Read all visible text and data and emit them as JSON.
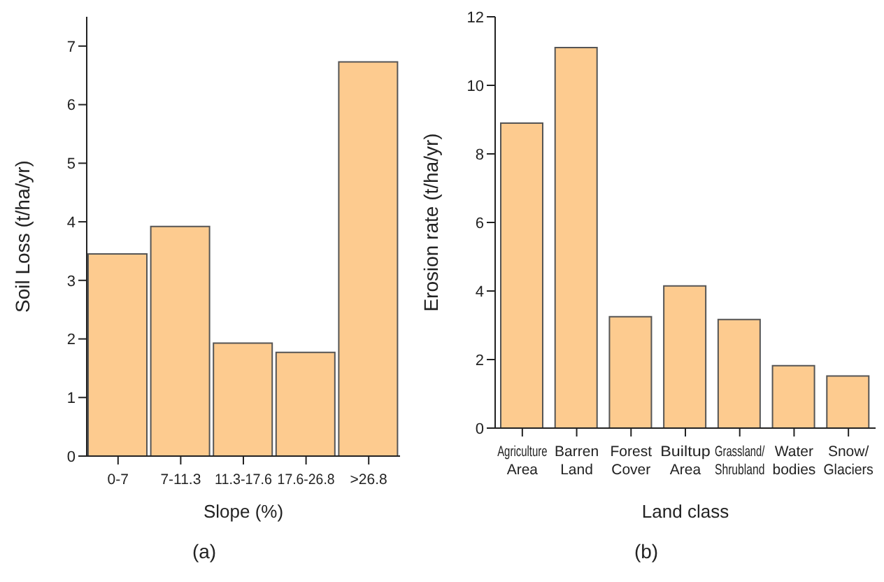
{
  "chart_data": [
    {
      "type": "bar",
      "xlabel": "Slope (%)",
      "ylabel": "Soil Loss (t/ha/yr)",
      "categories": [
        "0-7",
        "7-11.3",
        "11.3-17.6",
        "17.6-26.8",
        ">26.8"
      ],
      "values": [
        3.45,
        3.92,
        1.93,
        1.77,
        6.73
      ],
      "color": "#fdcb8f",
      "ylim": [
        0,
        7.5
      ],
      "yticks": [
        0,
        1,
        2,
        3,
        4,
        5,
        6,
        7
      ],
      "grid": false,
      "legend": false,
      "annotations": [
        "(a)"
      ]
    },
    {
      "type": "bar",
      "xlabel": "Land class",
      "ylabel": "Erosion rate (t/ha/yr)",
      "categories": [
        "Agriculture Area",
        "Barren Land",
        "Forest Cover",
        "Builtup Area",
        "Grassland/ Shrubland",
        "Water bodies",
        "Snow/ Glaciers"
      ],
      "values": [
        8.9,
        11.1,
        3.25,
        4.15,
        3.17,
        1.82,
        1.52
      ],
      "color": "#fdcb8f",
      "ylim": [
        0,
        12
      ],
      "yticks": [
        0,
        2,
        4,
        6,
        8,
        10,
        12
      ],
      "grid": false,
      "legend": false,
      "annotations": [
        "(b)"
      ]
    }
  ]
}
